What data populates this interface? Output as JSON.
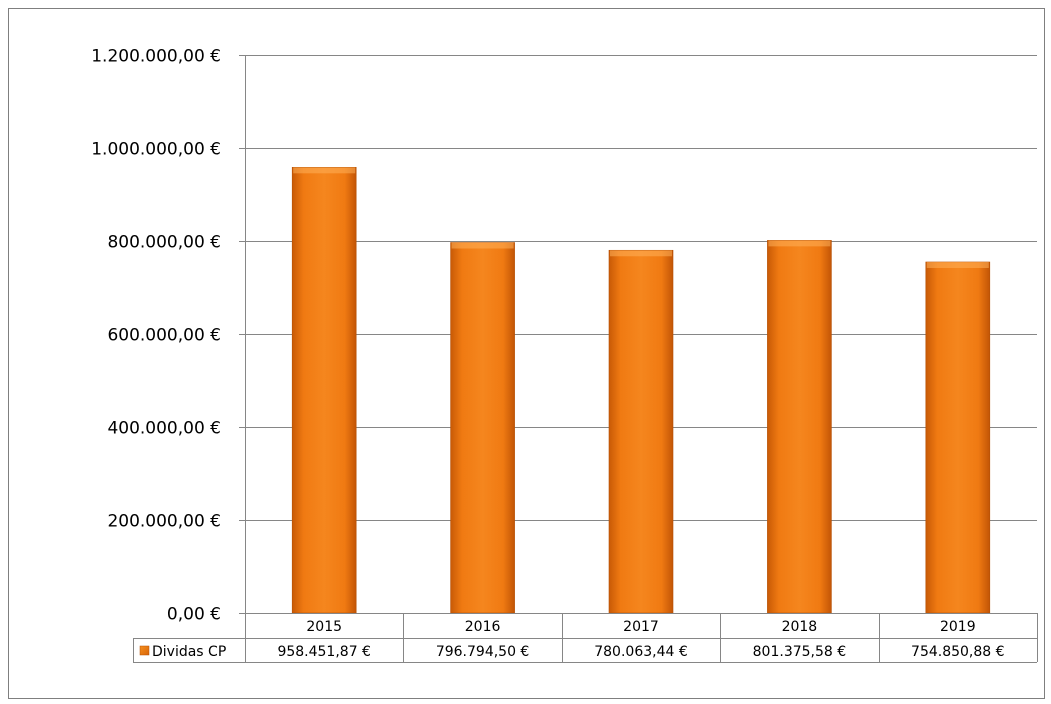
{
  "chart_data": {
    "type": "bar",
    "title": "",
    "xlabel": "",
    "ylabel": "",
    "categories": [
      "2015",
      "2016",
      "2017",
      "2018",
      "2019"
    ],
    "series": [
      {
        "name": "Dividas CP",
        "values": [
          958451.87,
          796794.5,
          780063.44,
          801375.58,
          754850.88
        ],
        "value_labels": [
          "958.451,87 €",
          "796.794,50 €",
          "780.063,44 €",
          "801.375,58 €",
          "754.850,88 €"
        ],
        "color": "#F07A12"
      }
    ],
    "ylim": [
      0,
      1200000
    ],
    "yticks": [
      0,
      200000,
      400000,
      600000,
      800000,
      1000000,
      1200000
    ],
    "ytick_labels": [
      "0,00 €",
      "200.000,00 €",
      "400.000,00 €",
      "600.000,00 €",
      "800.000,00 €",
      "1.000.000,00 €",
      "1.200.000,00 €"
    ],
    "grid": true,
    "legend": "data-table-left",
    "data_table": true
  }
}
